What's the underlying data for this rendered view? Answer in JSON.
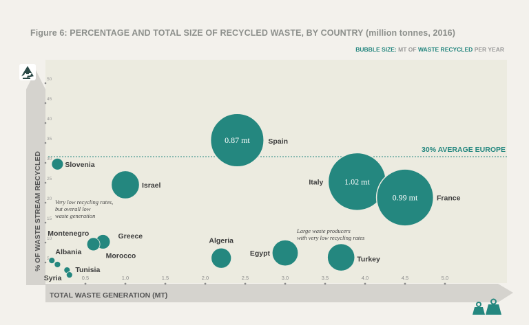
{
  "figure_title": "Figure 6: PERCENTAGE AND TOTAL SIZE OF RECYCLED WASTE, BY COUNTRY (million tonnes, 2016)",
  "bubble_note": {
    "part1": "BUBBLE SIZE:",
    "part2": "MT OF",
    "part3": "WASTE RECYCLED",
    "part4": "PER YEAR"
  },
  "icons": [
    "recycle-icon",
    "weights-icon"
  ],
  "colors": {
    "bubble": "#24877f",
    "plot_bg": "#ecebe0",
    "axis_band": "#d5d3ce",
    "axis_text": "#5e5e5e",
    "bubble_label_text": "#ffffff"
  },
  "chart_data": {
    "type": "scatter",
    "title": "Figure 6: PERCENTAGE AND TOTAL SIZE OF RECYCLED WASTE, BY COUNTRY (million tonnes, 2016)",
    "xlabel": "TOTAL WASTE GENERATION (MT)",
    "ylabel": "% OF WASTE STREAM RECYCLED",
    "xlim": [
      0,
      5.5
    ],
    "ylim": [
      0,
      55
    ],
    "x_ticks": [
      0.5,
      1.0,
      1.5,
      2.0,
      2.5,
      3.0,
      3.5,
      4.0,
      4.5,
      5.0
    ],
    "x_tick_labels": [
      "0.5",
      "1.0",
      "1.5",
      "2.0",
      "2.5",
      "3.0",
      "3.5",
      "4.0",
      "4.5",
      "5.0"
    ],
    "y_ticks": [
      5,
      10,
      15,
      20,
      25,
      30,
      35,
      40,
      45,
      50
    ],
    "y_tick_labels": [
      "5",
      "10",
      "15",
      "20",
      "25",
      "30",
      "35",
      "40",
      "45",
      "50"
    ],
    "reference_line": {
      "y": 30,
      "label": "30% AVERAGE EUROPE"
    },
    "points": [
      {
        "country": "Spain",
        "x": 2.4,
        "y": 35,
        "recycled_mt": 0.87,
        "bubble_label": "0.87 mt"
      },
      {
        "country": "Italy",
        "x": 3.9,
        "y": 24.6,
        "recycled_mt": 1.02,
        "bubble_label": "1.02 mt"
      },
      {
        "country": "France",
        "x": 4.5,
        "y": 20.6,
        "recycled_mt": 0.99,
        "bubble_label": "0.99 mt"
      },
      {
        "country": "Israel",
        "x": 1.0,
        "y": 23.8,
        "recycled_mt": 0.24
      },
      {
        "country": "Slovenia",
        "x": 0.15,
        "y": 29.0,
        "recycled_mt": 0.04
      },
      {
        "country": "Algeria",
        "x": 2.2,
        "y": 5.4,
        "recycled_mt": 0.12
      },
      {
        "country": "Egypt",
        "x": 3.0,
        "y": 6.7,
        "recycled_mt": 0.2
      },
      {
        "country": "Turkey",
        "x": 3.7,
        "y": 5.6,
        "recycled_mt": 0.22
      },
      {
        "country": "Greece",
        "x": 0.72,
        "y": 9.5,
        "recycled_mt": 0.06
      },
      {
        "country": "Morocco",
        "x": 0.6,
        "y": 8.9,
        "recycled_mt": 0.05
      },
      {
        "country": "Montenegro",
        "x": 0.08,
        "y": 4.8,
        "recycled_mt": 0.01
      },
      {
        "country": "Albania",
        "x": 0.15,
        "y": 3.8,
        "recycled_mt": 0.01
      },
      {
        "country": "Tunisia",
        "x": 0.27,
        "y": 2.4,
        "recycled_mt": 0.01
      },
      {
        "country": "Syria",
        "x": 0.3,
        "y": 1.2,
        "recycled_mt": 0.01
      }
    ],
    "annotations": [
      {
        "lines": [
          "Very low recycling rates,",
          "but overall low",
          "waste generation"
        ]
      },
      {
        "lines": [
          "Large waste producers",
          "with very low recycling rates"
        ]
      }
    ]
  }
}
